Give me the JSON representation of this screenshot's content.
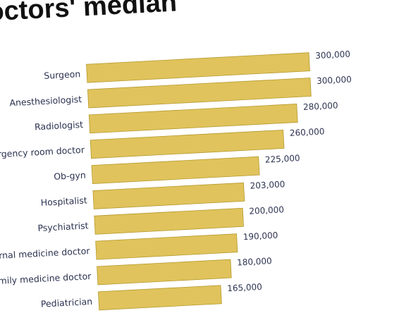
{
  "chart_data": {
    "type": "bar",
    "orientation": "horizontal",
    "title": "octors' median",
    "categories": [
      "Surgeon",
      "Anesthesiologist",
      "Radiologist",
      "nergency room doctor",
      "Ob-gyn",
      "Hospitalist",
      "Psychiatrist",
      "nternal medicine doctor",
      "Family medicine doctor",
      "Pediatrician"
    ],
    "values": [
      300000,
      300000,
      280000,
      260000,
      225000,
      203000,
      200000,
      190000,
      180000,
      165000
    ],
    "value_labels": [
      "300,000",
      "300,000",
      "280,000",
      "260,000",
      "225,000",
      "203,000",
      "200,000",
      "190,000",
      "180,000",
      "165,000"
    ],
    "bar_color": "#e0c35c",
    "bar_edge_color": "#b59a2e",
    "text_color": "#2b3250",
    "grid": false,
    "legend": "none"
  }
}
